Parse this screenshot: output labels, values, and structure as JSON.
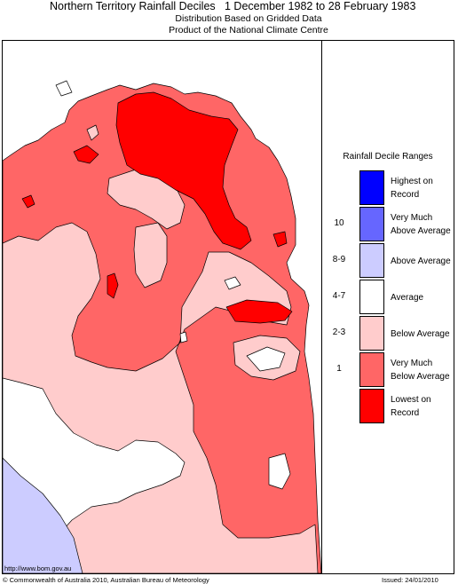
{
  "header": {
    "title": "Northern Territory Rainfall Deciles",
    "date_range": "1 December 1982 to 28 February 1983",
    "subtitle_1": "Distribution Based on Gridded Data",
    "subtitle_2": "Product of the National Climate Centre"
  },
  "legend": {
    "title": "Rainfall Decile Ranges",
    "items": [
      {
        "lines": [
          "Highest on",
          "Record"
        ],
        "range": "",
        "color": "#0000ff"
      },
      {
        "lines": [
          "Very Much",
          "Above Average"
        ],
        "range": "10",
        "color": "#6666ff"
      },
      {
        "lines": [
          "Above Average"
        ],
        "range": "8-9",
        "color": "#ccccff"
      },
      {
        "lines": [
          "Average"
        ],
        "range": "4-7",
        "color": "#ffffff"
      },
      {
        "lines": [
          "Below Average"
        ],
        "range": "2-3",
        "color": "#ffcccc"
      },
      {
        "lines": [
          "Very Much",
          "Below Average"
        ],
        "range": "1",
        "color": "#ff6666"
      },
      {
        "lines": [
          "Lowest on",
          "Record"
        ],
        "range": "",
        "color": "#ff0000"
      }
    ]
  },
  "footer": {
    "url": "http://www.bom.gov.au",
    "copyright": "© Commonwealth of Australia 2010, Australian Bureau of Meteorology",
    "issued": "Issued: 24/01/2010"
  }
}
